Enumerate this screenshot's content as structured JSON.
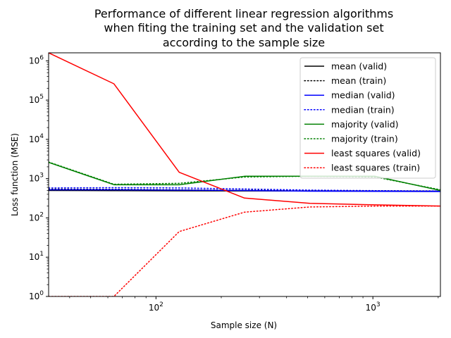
{
  "chart_data": {
    "type": "line",
    "title_lines": [
      "Performance of different linear regression algorithms",
      "when fiting the training set and the validation set",
      "according to the sample size"
    ],
    "xlabel": "Sample size (N)",
    "ylabel": "Loss function (MSE)",
    "xscale": "log",
    "yscale": "log",
    "xlim": [
      32,
      2048
    ],
    "ylim": [
      1,
      1600000
    ],
    "x_ticks": [
      {
        "value": 100,
        "base": "10",
        "exp": "2"
      },
      {
        "value": 1000,
        "base": "10",
        "exp": "3"
      }
    ],
    "y_ticks": [
      {
        "value": 1,
        "base": "10",
        "exp": "0"
      },
      {
        "value": 10,
        "base": "10",
        "exp": "1"
      },
      {
        "value": 100,
        "base": "10",
        "exp": "2"
      },
      {
        "value": 1000,
        "base": "10",
        "exp": "3"
      },
      {
        "value": 10000,
        "base": "10",
        "exp": "4"
      },
      {
        "value": 100000,
        "base": "10",
        "exp": "5"
      },
      {
        "value": 1000000,
        "base": "10",
        "exp": "6"
      }
    ],
    "legend_position": "top-right",
    "x": [
      32,
      64,
      128,
      256,
      512,
      1024,
      2048
    ],
    "series": [
      {
        "name": "mean (valid)",
        "color": "#000000",
        "style": "solid",
        "values": [
          500,
          495,
          490,
          488,
          485,
          482,
          480
        ]
      },
      {
        "name": "mean (train)",
        "color": "#000000",
        "style": "dotted",
        "values": [
          540,
          535,
          520,
          505,
          495,
          490,
          485
        ]
      },
      {
        "name": "median (valid)",
        "color": "#0000ff",
        "style": "solid",
        "values": [
          520,
          520,
          510,
          500,
          480,
          475,
          470
        ]
      },
      {
        "name": "median (train)",
        "color": "#0000ff",
        "style": "dotted",
        "values": [
          580,
          590,
          580,
          545,
          510,
          495,
          485
        ]
      },
      {
        "name": "majority (valid)",
        "color": "#008000",
        "style": "solid",
        "values": [
          2600,
          700,
          700,
          1150,
          1150,
          1150,
          500
        ]
      },
      {
        "name": "majority (train)",
        "color": "#008000",
        "style": "dotted",
        "values": [
          2650,
          720,
          760,
          1100,
          1150,
          1100,
          520
        ]
      },
      {
        "name": "least squares (valid)",
        "color": "#ff0000",
        "style": "solid",
        "values": [
          1600000,
          260000,
          1450,
          320,
          235,
          215,
          200
        ]
      },
      {
        "name": "least squares (train)",
        "color": "#ff0000",
        "style": "dotted",
        "values": [
          1,
          1,
          45,
          140,
          190,
          200,
          200
        ]
      }
    ]
  }
}
